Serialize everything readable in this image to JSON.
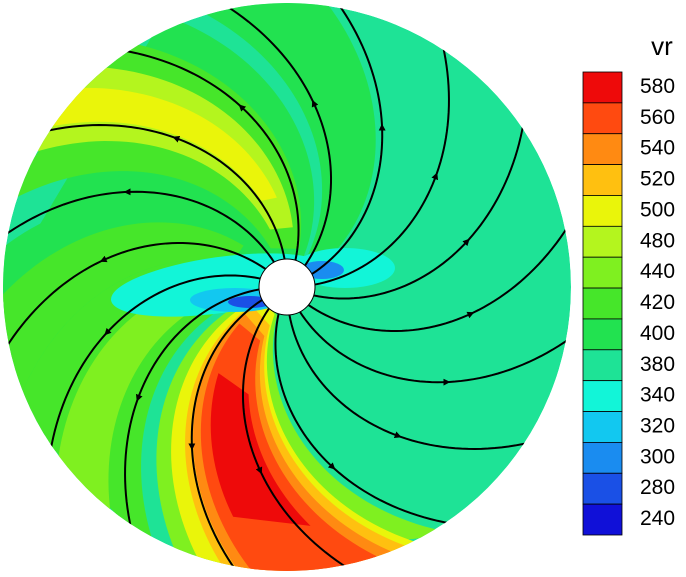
{
  "chart_data": {
    "type": "contour",
    "legend_title": "vr",
    "levels": [
      580,
      560,
      540,
      520,
      500,
      480,
      440,
      420,
      400,
      380,
      340,
      320,
      300,
      280,
      240
    ],
    "level_colors": [
      "#ee0a0a",
      "#ff4a10",
      "#ff8a12",
      "#ffc010",
      "#eaf50a",
      "#b4f51e",
      "#7ff020",
      "#46e62a",
      "#22e250",
      "#1ee396",
      "#12f5d8",
      "#12c8f0",
      "#1a8cf0",
      "#1a50e6",
      "#1010d8"
    ]
  }
}
